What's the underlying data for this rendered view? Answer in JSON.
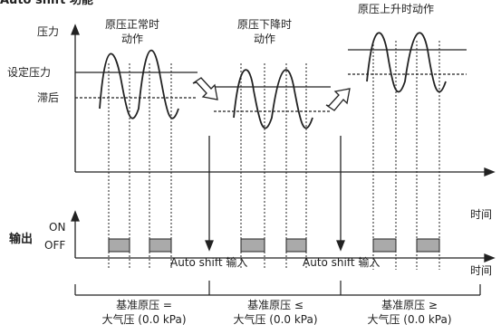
{
  "title": "Auto shift 功能",
  "y_axis_pressure": "压力",
  "set_pressure": "设定压力",
  "hysteresis": "滞后",
  "output": "输出",
  "on": "ON",
  "off": "OFF",
  "time": "时间",
  "phase_normal": [
    "原压正常时",
    "动作"
  ],
  "phase_down": [
    "原压下降时",
    "动作"
  ],
  "phase_up": "原压上升时动作",
  "auto_shift_input": "Auto shift 输入",
  "ref_equal": [
    "基准原压 =",
    "大气压 (0.0 kPa)"
  ],
  "ref_le": [
    "基准原压 ≤",
    "大气压 (0.0 kPa)"
  ],
  "ref_ge": [
    "基准原压 ≥",
    "大气压 (0.0 kPa)"
  ]
}
